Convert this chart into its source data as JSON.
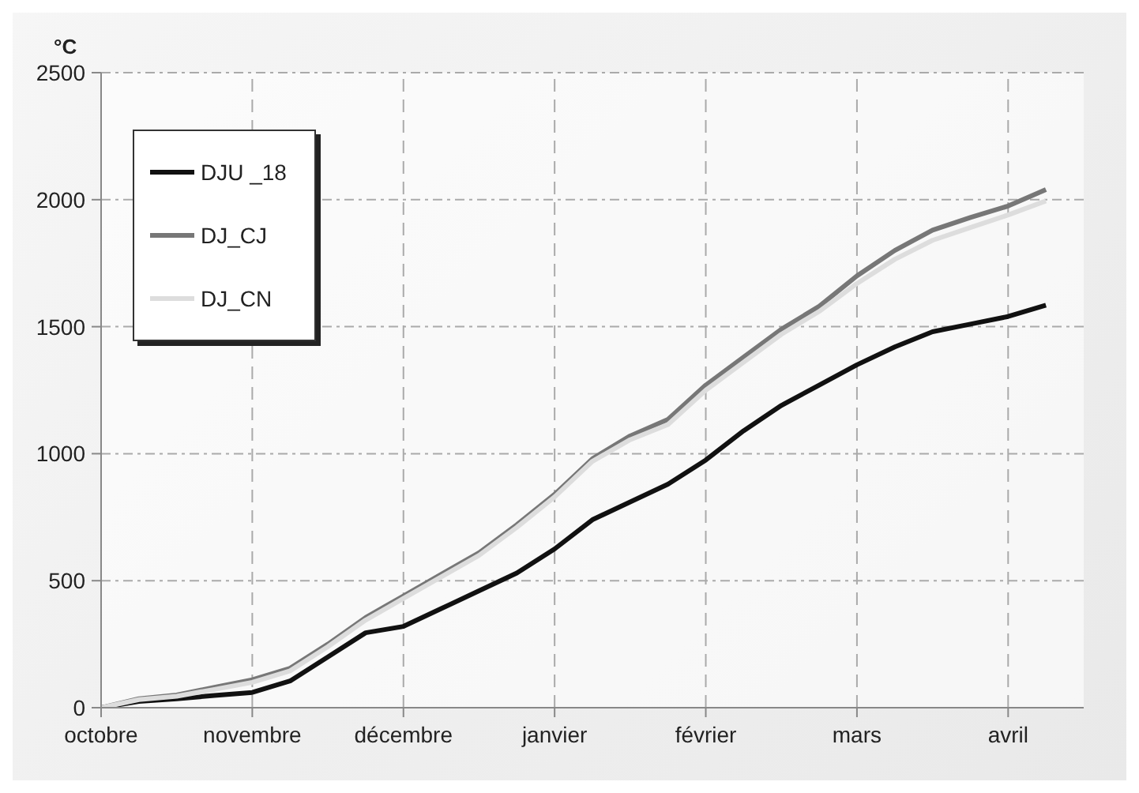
{
  "chart_data": {
    "type": "line",
    "ylabel": "°C",
    "categories": [
      "octobre",
      null,
      null,
      null,
      "novembre",
      null,
      null,
      null,
      "décembre",
      null,
      null,
      null,
      "janvier",
      null,
      null,
      null,
      "février",
      null,
      null,
      null,
      "mars",
      null,
      null,
      null,
      "avril",
      null,
      null
    ],
    "series": [
      {
        "name": "DJU _18",
        "color": "#111111",
        "values": [
          0,
          25,
          35,
          48,
          60,
          105,
          200,
          295,
          320,
          390,
          460,
          530,
          625,
          740,
          810,
          880,
          975,
          1090,
          1190,
          1270,
          1350,
          1420,
          1480,
          1510,
          1540,
          1585,
          null
        ]
      },
      {
        "name": "DJ_CJ",
        "color": "#777777",
        "values": [
          0,
          35,
          50,
          80,
          110,
          155,
          250,
          355,
          440,
          525,
          610,
          720,
          840,
          980,
          1070,
          1135,
          1270,
          1380,
          1490,
          1580,
          1700,
          1800,
          1880,
          1930,
          1975,
          2040,
          null
        ]
      },
      {
        "name": "DJ_CN",
        "color": "#dddddd",
        "values": [
          0,
          32,
          45,
          72,
          100,
          145,
          240,
          345,
          430,
          515,
          600,
          710,
          830,
          970,
          1055,
          1115,
          1250,
          1360,
          1470,
          1560,
          1670,
          1765,
          1840,
          1890,
          1940,
          1995,
          null
        ]
      }
    ],
    "ylim": [
      0,
      2500
    ],
    "yticks": [
      0,
      500,
      1000,
      1500,
      2000,
      2500
    ],
    "grid": true,
    "legend": "top left",
    "marker": "none",
    "line_style": "solid"
  }
}
